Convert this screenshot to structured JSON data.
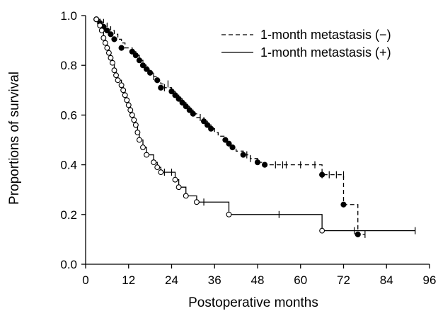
{
  "chart_data": {
    "type": "line",
    "title": "",
    "xlabel": "Postoperative months",
    "ylabel": "Proportions of survival",
    "xlim": [
      0,
      96
    ],
    "ylim": [
      0.0,
      1.0
    ],
    "x_ticks": [
      "0",
      "12",
      "24",
      "36",
      "48",
      "60",
      "72",
      "84",
      "96"
    ],
    "y_ticks": [
      "0.0",
      "0.2",
      "0.4",
      "0.6",
      "0.8",
      "1.0"
    ],
    "grid": false,
    "legend_position": "top-right",
    "series": [
      {
        "name": "1-month metastasis (−)",
        "line_style": "dashed",
        "marker": "filled-circle",
        "color": "#000000",
        "steps": [
          [
            3,
            0.985
          ],
          [
            5,
            0.97
          ],
          [
            6,
            0.955
          ],
          [
            7,
            0.94
          ],
          [
            8,
            0.925
          ],
          [
            9,
            0.905
          ],
          [
            10,
            0.89
          ],
          [
            11,
            0.87
          ],
          [
            13,
            0.855
          ],
          [
            14,
            0.84
          ],
          [
            15,
            0.82
          ],
          [
            16,
            0.8
          ],
          [
            17,
            0.785
          ],
          [
            18,
            0.77
          ],
          [
            19,
            0.755
          ],
          [
            20,
            0.74
          ],
          [
            21,
            0.725
          ],
          [
            22,
            0.71
          ],
          [
            24,
            0.695
          ],
          [
            25,
            0.68
          ],
          [
            26,
            0.665
          ],
          [
            27,
            0.65
          ],
          [
            28,
            0.635
          ],
          [
            29,
            0.62
          ],
          [
            30,
            0.605
          ],
          [
            31,
            0.59
          ],
          [
            33,
            0.575
          ],
          [
            34,
            0.56
          ],
          [
            35,
            0.545
          ],
          [
            36,
            0.53
          ],
          [
            37,
            0.515
          ],
          [
            39,
            0.5
          ],
          [
            40,
            0.485
          ],
          [
            41,
            0.47
          ],
          [
            42,
            0.455
          ],
          [
            44,
            0.44
          ],
          [
            46,
            0.425
          ],
          [
            48,
            0.41
          ],
          [
            50,
            0.4
          ],
          [
            66,
            0.36
          ],
          [
            72,
            0.24
          ],
          [
            76,
            0.12
          ],
          [
            78,
            0.12
          ]
        ],
        "event_markers": [
          [
            3,
            0.985
          ],
          [
            4,
            0.97
          ],
          [
            5,
            0.955
          ],
          [
            6,
            0.94
          ],
          [
            7,
            0.925
          ],
          [
            8,
            0.905
          ],
          [
            10,
            0.87
          ],
          [
            13,
            0.855
          ],
          [
            14,
            0.84
          ],
          [
            15,
            0.82
          ],
          [
            16,
            0.8
          ],
          [
            17,
            0.785
          ],
          [
            18,
            0.77
          ],
          [
            20,
            0.74
          ],
          [
            21,
            0.71
          ],
          [
            24,
            0.695
          ],
          [
            25,
            0.68
          ],
          [
            26,
            0.665
          ],
          [
            27,
            0.65
          ],
          [
            28,
            0.635
          ],
          [
            29,
            0.62
          ],
          [
            30,
            0.605
          ],
          [
            33,
            0.575
          ],
          [
            34,
            0.56
          ],
          [
            35,
            0.545
          ],
          [
            39,
            0.5
          ],
          [
            40,
            0.485
          ],
          [
            41,
            0.47
          ],
          [
            44,
            0.44
          ],
          [
            48,
            0.41
          ],
          [
            50,
            0.4
          ],
          [
            66,
            0.36
          ],
          [
            72,
            0.24
          ],
          [
            76,
            0.12
          ]
        ],
        "censored": [
          [
            19,
            0.755
          ],
          [
            22,
            0.71
          ],
          [
            23,
            0.725
          ],
          [
            32,
            0.59
          ],
          [
            45,
            0.44
          ],
          [
            46,
            0.425
          ],
          [
            53,
            0.4
          ],
          [
            55,
            0.4
          ],
          [
            56,
            0.4
          ],
          [
            60,
            0.4
          ],
          [
            64,
            0.4
          ],
          [
            66,
            0.36
          ],
          [
            68,
            0.36
          ],
          [
            70,
            0.36
          ],
          [
            72,
            0.36
          ],
          [
            78,
            0.12
          ]
        ]
      },
      {
        "name": "1-month metastasis (+)",
        "line_style": "solid",
        "marker": "open-circle",
        "color": "#000000",
        "steps": [
          [
            3,
            0.985
          ],
          [
            4,
            0.96
          ],
          [
            4.5,
            0.94
          ],
          [
            5,
            0.91
          ],
          [
            5.5,
            0.89
          ],
          [
            6,
            0.87
          ],
          [
            6.5,
            0.85
          ],
          [
            7,
            0.83
          ],
          [
            7.5,
            0.81
          ],
          [
            8,
            0.78
          ],
          [
            8.5,
            0.76
          ],
          [
            9,
            0.74
          ],
          [
            10,
            0.72
          ],
          [
            10.5,
            0.7
          ],
          [
            11,
            0.68
          ],
          [
            11.5,
            0.66
          ],
          [
            12,
            0.64
          ],
          [
            12.5,
            0.62
          ],
          [
            13,
            0.6
          ],
          [
            13.5,
            0.58
          ],
          [
            14,
            0.56
          ],
          [
            14.5,
            0.53
          ],
          [
            15,
            0.5
          ],
          [
            16,
            0.47
          ],
          [
            17,
            0.44
          ],
          [
            19,
            0.41
          ],
          [
            20,
            0.39
          ],
          [
            21,
            0.37
          ],
          [
            25,
            0.34
          ],
          [
            26,
            0.31
          ],
          [
            28,
            0.275
          ],
          [
            31,
            0.25
          ],
          [
            40,
            0.2
          ],
          [
            66,
            0.135
          ],
          [
            92,
            0.135
          ]
        ],
        "event_markers": [
          [
            3,
            0.985
          ],
          [
            4,
            0.96
          ],
          [
            4.5,
            0.94
          ],
          [
            5,
            0.91
          ],
          [
            5.5,
            0.89
          ],
          [
            6,
            0.87
          ],
          [
            6.5,
            0.85
          ],
          [
            7,
            0.83
          ],
          [
            7.5,
            0.81
          ],
          [
            8,
            0.78
          ],
          [
            8.5,
            0.76
          ],
          [
            9,
            0.74
          ],
          [
            10,
            0.72
          ],
          [
            10.5,
            0.7
          ],
          [
            11,
            0.68
          ],
          [
            11.5,
            0.66
          ],
          [
            12,
            0.64
          ],
          [
            12.5,
            0.62
          ],
          [
            13,
            0.6
          ],
          [
            13.5,
            0.58
          ],
          [
            14,
            0.56
          ],
          [
            14.5,
            0.53
          ],
          [
            15,
            0.5
          ],
          [
            16,
            0.47
          ],
          [
            17,
            0.44
          ],
          [
            19,
            0.41
          ],
          [
            20,
            0.39
          ],
          [
            21,
            0.37
          ],
          [
            25,
            0.34
          ],
          [
            26,
            0.31
          ],
          [
            28,
            0.275
          ],
          [
            31,
            0.25
          ],
          [
            40,
            0.2
          ],
          [
            66,
            0.135
          ]
        ],
        "censored": [
          [
            12.5,
            0.62
          ],
          [
            22,
            0.37
          ],
          [
            24,
            0.37
          ],
          [
            33,
            0.25
          ],
          [
            54,
            0.2
          ],
          [
            75,
            0.135
          ],
          [
            92,
            0.135
          ]
        ]
      }
    ]
  }
}
